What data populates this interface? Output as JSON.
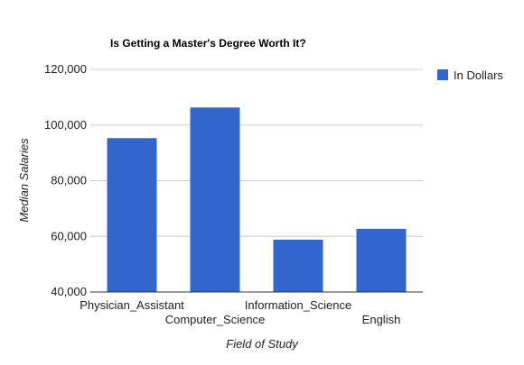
{
  "chart_data": {
    "type": "bar",
    "title": "Is Getting a Master's Degree Worth It?",
    "xlabel": "Field of Study",
    "ylabel": "Median Salaries",
    "categories": [
      "Physician_Assistant",
      "Computer_Science",
      "Information_Science",
      "English"
    ],
    "series": [
      {
        "name": "In Dollars",
        "values": [
          95300,
          106300,
          58800,
          62700
        ]
      }
    ],
    "ylim": [
      40000,
      120000
    ],
    "yticks": [
      "40,000",
      "60,000",
      "80,000",
      "100,000",
      "120,000"
    ],
    "grid": true,
    "legend": "right",
    "colors": {
      "bar": "#3366cc",
      "grid": "#cccccc",
      "axis": "#333333",
      "text": "#222222"
    }
  }
}
